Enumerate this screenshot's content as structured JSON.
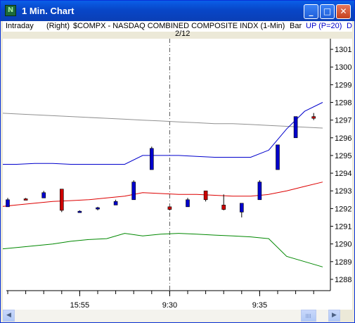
{
  "window": {
    "title": "1 Min. Chart",
    "app_icon_glyph": "N",
    "buttons": {
      "minimize": "_",
      "maximize": "□",
      "close": "✕"
    }
  },
  "infobar": {
    "mode": "Intraday",
    "axis": "(Right)",
    "symbol": "$COMPX - NASDAQ COMBINED COMPOSITE INDX  (1-Min)",
    "style": "Bar",
    "indicator": "UP (P=20)",
    "extra": "D"
  },
  "date_label": "2/12",
  "colors": {
    "upper_band": "#0000cc",
    "middle_band": "#dd0000",
    "lower_band": "#008800",
    "average_line": "#909090",
    "up_bar": "#0000cc",
    "down_bar": "#cc0000"
  },
  "chart_data": {
    "type": "candlestick",
    "y_tick_labels": [
      "1301",
      "1300",
      "1299",
      "1298",
      "1297",
      "1296",
      "1295",
      "1294",
      "1293",
      "1292",
      "1291",
      "1290",
      "1289",
      "1288"
    ],
    "ylim": [
      1287.6,
      1301.6
    ],
    "x_tick_labels": [
      "15:55",
      "9:30",
      "9:35"
    ],
    "session_divider": "9:30",
    "candles": [
      {
        "open": 1292.1,
        "high": 1292.6,
        "low": 1292.1,
        "close": 1292.5
      },
      {
        "open": 1292.55,
        "high": 1292.6,
        "low": 1292.5,
        "close": 1292.5
      },
      {
        "open": 1292.6,
        "high": 1293.0,
        "low": 1292.6,
        "close": 1292.9
      },
      {
        "open": 1293.1,
        "high": 1293.1,
        "low": 1291.8,
        "close": 1291.9
      },
      {
        "open": 1291.85,
        "high": 1291.9,
        "low": 1291.8,
        "close": 1291.85
      },
      {
        "open": 1292.0,
        "high": 1292.1,
        "low": 1291.9,
        "close": 1292.05
      },
      {
        "open": 1292.2,
        "high": 1292.5,
        "low": 1292.2,
        "close": 1292.4
      },
      {
        "open": 1292.5,
        "high": 1293.6,
        "low": 1292.5,
        "close": 1293.5
      },
      {
        "open": 1294.2,
        "high": 1295.5,
        "low": 1294.2,
        "close": 1295.4
      },
      {
        "open": 1292.1,
        "high": 1292.1,
        "low": 1291.9,
        "close": 1291.95
      },
      {
        "open": 1292.1,
        "high": 1292.6,
        "low": 1292.1,
        "close": 1292.5
      },
      {
        "open": 1293.0,
        "high": 1293.0,
        "low": 1292.4,
        "close": 1292.5
      },
      {
        "open": 1292.2,
        "high": 1292.8,
        "low": 1291.9,
        "close": 1291.95
      },
      {
        "open": 1291.8,
        "high": 1292.3,
        "low": 1291.5,
        "close": 1292.3
      },
      {
        "open": 1292.5,
        "high": 1293.6,
        "low": 1292.5,
        "close": 1293.5
      },
      {
        "open": 1294.2,
        "high": 1295.6,
        "low": 1294.2,
        "close": 1295.6
      },
      {
        "open": 1296.0,
        "high": 1297.2,
        "low": 1296.0,
        "close": 1297.2
      },
      {
        "open": 1297.2,
        "high": 1297.4,
        "low": 1297.0,
        "close": 1297.1
      }
    ],
    "series": [
      {
        "values": [
          1297.4,
          1297.35,
          1297.3,
          1297.25,
          1297.2,
          1297.15,
          1297.1,
          1297.05,
          1297.0,
          1296.95,
          1296.9,
          1296.85,
          1296.8,
          1296.8,
          1296.75,
          1296.7,
          1296.65,
          1296.6,
          1296.55
        ]
      },
      {
        "values": [
          1294.5,
          1294.5,
          1294.55,
          1294.55,
          1294.5,
          1294.5,
          1294.5,
          1294.5,
          1295.0,
          1295.0,
          1295.0,
          1294.95,
          1294.9,
          1294.9,
          1294.9,
          1295.3,
          1296.5,
          1297.5,
          1298.0
        ]
      },
      {
        "values": [
          1292.1,
          1292.2,
          1292.3,
          1292.4,
          1292.45,
          1292.5,
          1292.6,
          1292.7,
          1292.9,
          1292.85,
          1292.8,
          1292.8,
          1292.75,
          1292.7,
          1292.7,
          1292.8,
          1293.0,
          1293.25,
          1293.5
        ]
      },
      {
        "values": [
          1289.7,
          1289.8,
          1289.9,
          1290.0,
          1290.15,
          1290.25,
          1290.3,
          1290.6,
          1290.45,
          1290.55,
          1290.6,
          1290.55,
          1290.5,
          1290.45,
          1290.4,
          1290.3,
          1289.3,
          1289.0,
          1288.7
        ]
      }
    ]
  }
}
